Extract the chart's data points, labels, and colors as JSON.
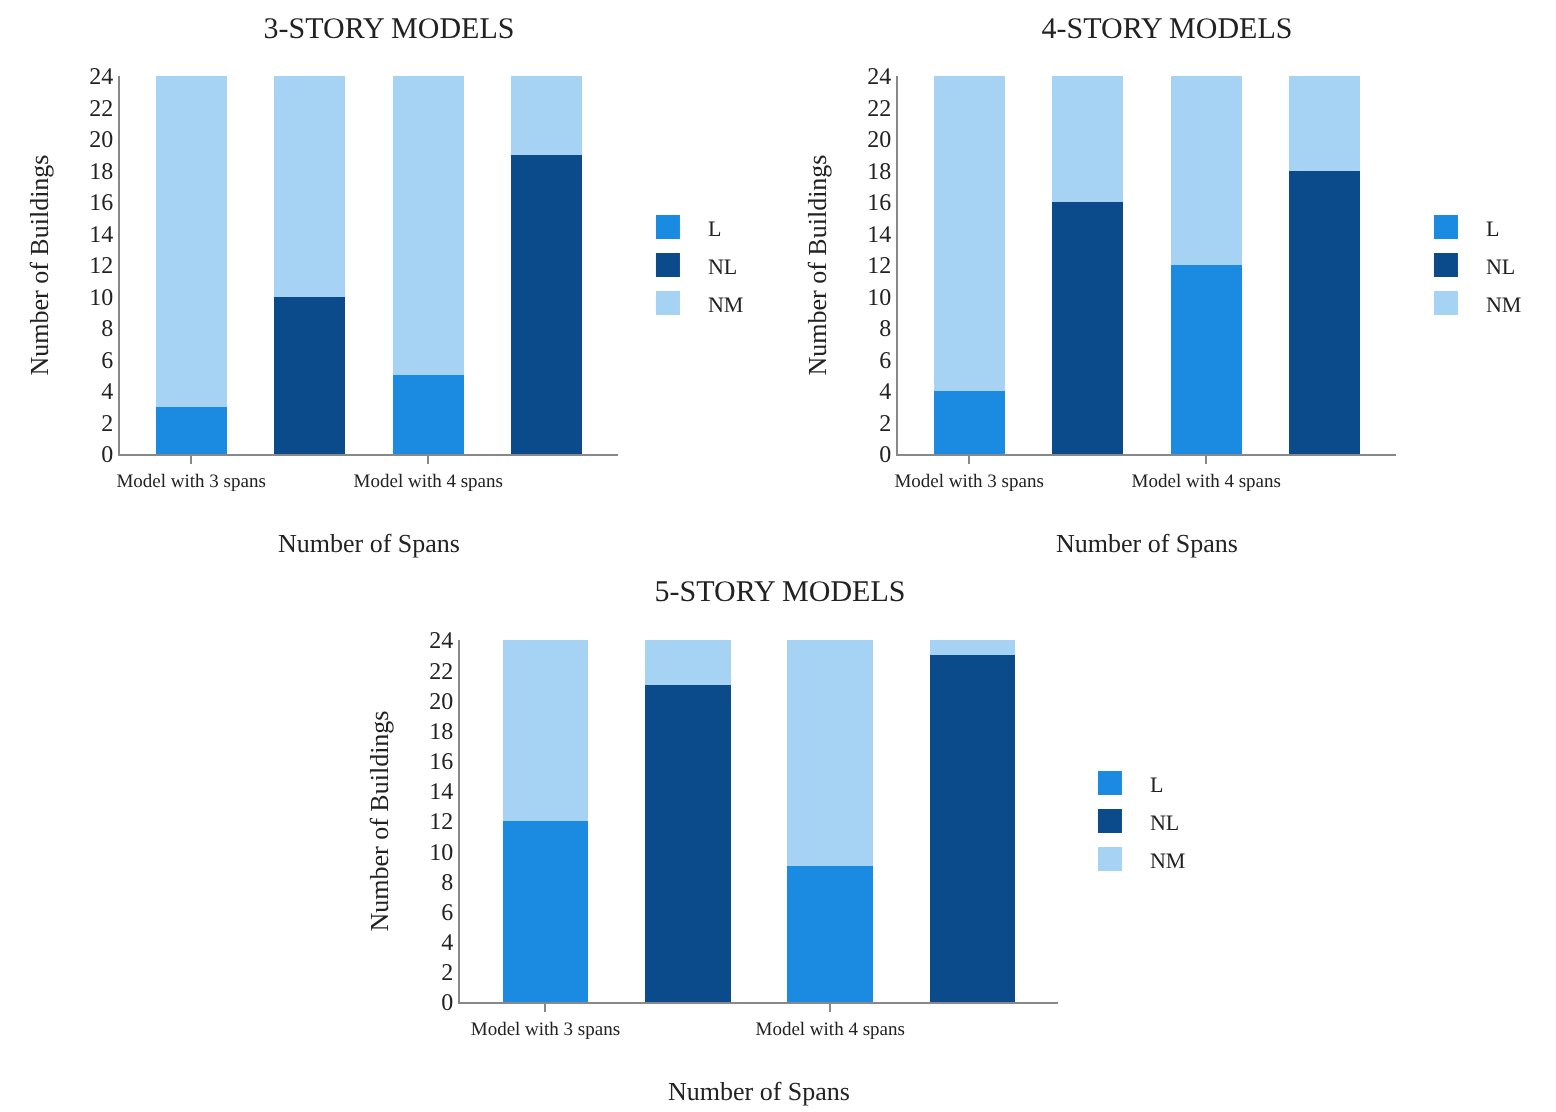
{
  "chart_data": [
    {
      "type": "bar",
      "title": "3-STORY MODELS",
      "xlabel": "Number of Spans",
      "ylabel": "Number of Buildings",
      "categories": [
        "Model with 3 spans",
        null,
        "Model with 4 spans",
        null
      ],
      "stacked": true,
      "ylim": [
        0,
        24
      ],
      "yticks": [
        0,
        2,
        4,
        6,
        8,
        10,
        12,
        14,
        16,
        18,
        20,
        22,
        24
      ],
      "legend": "right",
      "series": [
        {
          "name": "L",
          "color": "#1a8be0",
          "values": [
            3,
            null,
            5,
            null
          ]
        },
        {
          "name": "NL",
          "color": "#0b4a8b",
          "values": [
            null,
            10,
            null,
            19
          ]
        },
        {
          "name": "NM",
          "color": "#a6d2f3",
          "values": [
            21,
            14,
            19,
            5
          ]
        }
      ]
    },
    {
      "type": "bar",
      "title": "4-STORY MODELS",
      "xlabel": "Number of Spans",
      "ylabel": "Number of Buildings",
      "categories": [
        "Model with 3 spans",
        null,
        "Model with 4 spans",
        null
      ],
      "stacked": true,
      "ylim": [
        0,
        24
      ],
      "yticks": [
        0,
        2,
        4,
        6,
        8,
        10,
        12,
        14,
        16,
        18,
        20,
        22,
        24
      ],
      "legend": "right",
      "series": [
        {
          "name": "L",
          "color": "#1a8be0",
          "values": [
            4,
            null,
            12,
            null
          ]
        },
        {
          "name": "NL",
          "color": "#0b4a8b",
          "values": [
            null,
            16,
            null,
            18
          ]
        },
        {
          "name": "NM",
          "color": "#a6d2f3",
          "values": [
            20,
            8,
            12,
            6
          ]
        }
      ]
    },
    {
      "type": "bar",
      "title": "5-STORY MODELS",
      "xlabel": "Number of Spans",
      "ylabel": "Number of Buildings",
      "categories": [
        "Model with 3 spans",
        null,
        "Model with 4 spans",
        null
      ],
      "stacked": true,
      "ylim": [
        0,
        24
      ],
      "yticks": [
        0,
        2,
        4,
        6,
        8,
        10,
        12,
        14,
        16,
        18,
        20,
        22,
        24
      ],
      "legend": "right",
      "series": [
        {
          "name": "L",
          "color": "#1a8be0",
          "values": [
            12,
            null,
            9,
            null
          ]
        },
        {
          "name": "NL",
          "color": "#0b4a8b",
          "values": [
            null,
            21,
            null,
            23
          ]
        },
        {
          "name": "NM",
          "color": "#a6d2f3",
          "values": [
            12,
            3,
            15,
            1
          ]
        }
      ]
    }
  ]
}
